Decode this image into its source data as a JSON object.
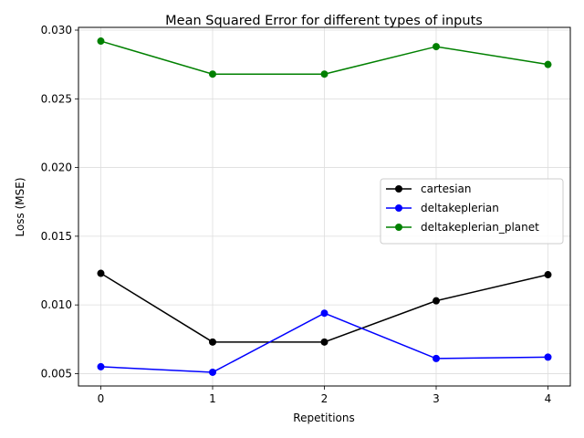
{
  "chart_data": {
    "type": "line",
    "title": "Mean Squared Error for different types of inputs",
    "xlabel": "Repetitions",
    "ylabel": "Loss (MSE)",
    "x": [
      0,
      1,
      2,
      3,
      4
    ],
    "xlim": [
      -0.2,
      4.2
    ],
    "ylim": [
      0.0041,
      0.0302
    ],
    "xticks": [
      "0",
      "1",
      "2",
      "3",
      "4"
    ],
    "yticks": [
      "0.005",
      "0.010",
      "0.015",
      "0.020",
      "0.025",
      "0.030"
    ],
    "grid": true,
    "legend_position": "center-right",
    "series": [
      {
        "name": "cartesian",
        "color": "#000000",
        "marker": "circle",
        "values": [
          0.0123,
          0.0073,
          0.0073,
          0.0103,
          0.0122
        ]
      },
      {
        "name": "deltakeplerian",
        "color": "#0000ff",
        "marker": "circle",
        "values": [
          0.0055,
          0.0051,
          0.0094,
          0.0061,
          0.0062
        ]
      },
      {
        "name": "deltakeplerian_planet",
        "color": "#008000",
        "marker": "circle",
        "values": [
          0.0292,
          0.0268,
          0.0268,
          0.0288,
          0.0275
        ]
      }
    ]
  }
}
